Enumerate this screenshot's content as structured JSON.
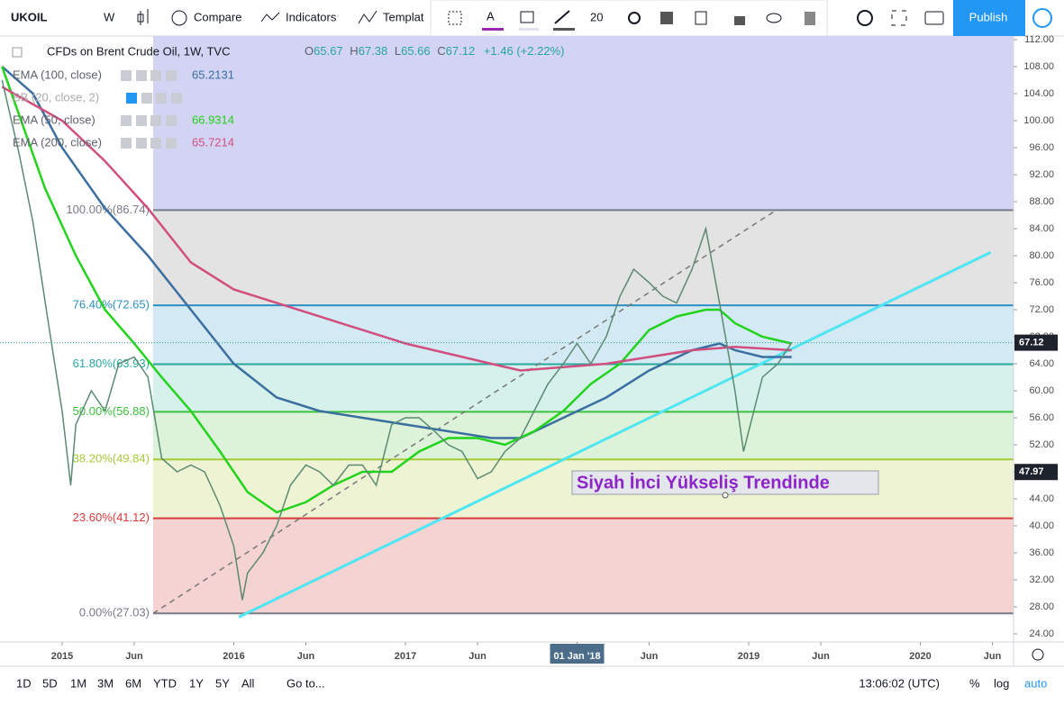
{
  "toolbar": {
    "symbol": "UKOIL",
    "interval": "W",
    "buttons": [
      "Compare",
      "Indicators",
      "Templat"
    ],
    "font_size": "20",
    "publish": "Publish"
  },
  "legend": {
    "title": "CFDs on Brent Crude Oil, 1W, TVC",
    "ohlc": [
      {
        "label": "O",
        "value": 65.67
      },
      {
        "label": "H",
        "value": 67.38
      },
      {
        "label": "L",
        "value": 65.66
      },
      {
        "label": "C",
        "value": 67.12
      }
    ],
    "change": "+1.46 (+2.22%)"
  },
  "chart_data": {
    "type": "line",
    "xlim": [
      2014.638,
      2020.543
    ],
    "ylim": [
      22.8,
      112.53
    ],
    "xticks": [
      {
        "value": 2015,
        "label": "2015"
      },
      {
        "value": 2015.42,
        "label": "Jun"
      },
      {
        "value": 2016,
        "label": "2016"
      },
      {
        "value": 2016.42,
        "label": "Jun"
      },
      {
        "value": 2017,
        "label": "2017"
      },
      {
        "value": 2017.42,
        "label": "Jun"
      },
      {
        "value": 2018,
        "label": "01 Jan '18"
      },
      {
        "value": 2018.42,
        "label": "Jun"
      },
      {
        "value": 2019,
        "label": "2019"
      },
      {
        "value": 2019.42,
        "label": "Jun"
      },
      {
        "value": 2020,
        "label": "2020"
      },
      {
        "value": 2020.42,
        "label": "Jun"
      }
    ],
    "yticks": [
      {
        "value": 24,
        "label": "24.00"
      },
      {
        "value": 28,
        "label": "28.00"
      },
      {
        "value": 32,
        "label": "32.00"
      },
      {
        "value": 36,
        "label": "36.00"
      },
      {
        "value": 40,
        "label": "40.00"
      },
      {
        "value": 44,
        "label": "44.00"
      },
      {
        "value": 48,
        "label": "48.00"
      },
      {
        "value": 52,
        "label": "52.00"
      },
      {
        "value": 56,
        "label": "56.00"
      },
      {
        "value": 60,
        "label": "60.00"
      },
      {
        "value": 64,
        "label": "64.00"
      },
      {
        "value": 68,
        "label": "68.00"
      },
      {
        "value": 72,
        "label": "72.00"
      },
      {
        "value": 76,
        "label": "76.00"
      },
      {
        "value": 80,
        "label": "80.00"
      },
      {
        "value": 84,
        "label": "84.00"
      },
      {
        "value": 88,
        "label": "88.00"
      },
      {
        "value": 92,
        "label": "92.00"
      },
      {
        "value": 96,
        "label": "96.00"
      },
      {
        "value": 100,
        "label": "100.00"
      },
      {
        "value": 104,
        "label": "104.00"
      },
      {
        "value": 108,
        "label": "108.00"
      },
      {
        "value": 112,
        "label": "112.00"
      }
    ],
    "color": "#5b8a72",
    "x": [
      2014.65,
      2014.75,
      2014.83,
      2014.92,
      2015.0,
      2015.05,
      2015.08,
      2015.17,
      2015.25,
      2015.33,
      2015.42,
      2015.5,
      2015.58,
      2015.67,
      2015.75,
      2015.83,
      2015.92,
      2016.0,
      2016.05,
      2016.08,
      2016.17,
      2016.25,
      2016.33,
      2016.42,
      2016.5,
      2016.58,
      2016.67,
      2016.75,
      2016.83,
      2016.92,
      2017.0,
      2017.08,
      2017.17,
      2017.25,
      2017.33,
      2017.42,
      2017.5,
      2017.58,
      2017.67,
      2017.75,
      2017.83,
      2017.92,
      2018.0,
      2018.08,
      2018.17,
      2018.25,
      2018.33,
      2018.42,
      2018.5,
      2018.58,
      2018.67,
      2018.75,
      2018.83,
      2018.92,
      2018.97,
      2019.0,
      2019.08,
      2019.17,
      2019.25
    ],
    "values": [
      106,
      95,
      85,
      70,
      57,
      46,
      55,
      60,
      57,
      64,
      65,
      62,
      50,
      48,
      49,
      48,
      43,
      37,
      29,
      33,
      36,
      40,
      46,
      49,
      48,
      46,
      49,
      49,
      46,
      55,
      56,
      56,
      54,
      52,
      51,
      47,
      48,
      51,
      53,
      57,
      61,
      64,
      67,
      64,
      68,
      74,
      78,
      76,
      74,
      73,
      78,
      84,
      73,
      60,
      51,
      54,
      62,
      64,
      67.12
    ],
    "indicators": [
      {
        "name": "EMA (100, close)",
        "last": 65.2131,
        "color": "#3a6fa0",
        "x": [
          2014.65,
          2014.83,
          2015.0,
          2015.25,
          2015.5,
          2015.75,
          2016.0,
          2016.25,
          2016.5,
          2016.75,
          2017.0,
          2017.25,
          2017.5,
          2017.67,
          2017.92,
          2018.17,
          2018.42,
          2018.67,
          2018.83,
          2018.92,
          2019.08,
          2019.25
        ],
        "values": [
          108,
          104,
          96,
          87,
          80,
          72,
          64,
          59,
          57,
          56,
          55,
          54,
          53,
          53,
          56,
          59,
          63,
          66,
          67,
          66,
          65,
          65
        ]
      },
      {
        "name": "BB (20, close, 2)",
        "last": null,
        "color": "#9ea3ad"
      },
      {
        "name": "EMA (50, close)",
        "last": 66.9314,
        "color": "#22d31c",
        "x": [
          2014.65,
          2014.9,
          2015.08,
          2015.25,
          2015.42,
          2015.58,
          2015.75,
          2015.92,
          2016.08,
          2016.25,
          2016.42,
          2016.58,
          2016.75,
          2016.92,
          2017.08,
          2017.25,
          2017.42,
          2017.58,
          2017.75,
          2017.92,
          2018.08,
          2018.25,
          2018.42,
          2018.58,
          2018.75,
          2018.83,
          2018.92,
          2019.08,
          2019.25
        ],
        "values": [
          108,
          90,
          80,
          72,
          67,
          62,
          57,
          51,
          45,
          42,
          43.5,
          46,
          48,
          48,
          51,
          53,
          53,
          52,
          54,
          57,
          61,
          64,
          69,
          71,
          72,
          72,
          70,
          68,
          67
        ]
      },
      {
        "name": "EMA (200, close)",
        "last": 65.7214,
        "color": "#d14f7e",
        "x": [
          2014.65,
          2015.0,
          2015.25,
          2015.5,
          2015.75,
          2016.0,
          2016.25,
          2016.5,
          2016.75,
          2017.0,
          2017.25,
          2017.5,
          2017.67,
          2017.92,
          2018.17,
          2018.42,
          2018.67,
          2018.92,
          2019.25
        ],
        "values": [
          105,
          100,
          94,
          87,
          79,
          75,
          73,
          71,
          69,
          67,
          65.5,
          64,
          63,
          63.5,
          64,
          65,
          66,
          66.5,
          66
        ]
      }
    ],
    "top_fill": "#d3d3f4",
    "fib_levels": [
      {
        "label": "100.00%(86.74)",
        "value": 86.74,
        "color": "#787b86",
        "fill": "#e3e3e3"
      },
      {
        "label": "76.40%(72.65)",
        "value": 72.65,
        "color": "#2e8fc2",
        "fill": "#d3e9f3"
      },
      {
        "label": "61.80%(63.93)",
        "value": 63.93,
        "color": "#27a89b",
        "fill": "#d6f0ec"
      },
      {
        "label": "50.00%(56.88)",
        "value": 56.88,
        "color": "#3cc23c",
        "fill": "#dcf2d9"
      },
      {
        "label": "38.20%(49.84)",
        "value": 49.84,
        "color": "#a5c93a",
        "fill": "#eef3d4"
      },
      {
        "label": "23.60%(41.12)",
        "value": 41.12,
        "color": "#d93a3a",
        "fill": "#f5d3d3"
      },
      {
        "label": "0.00%(27.03)",
        "value": 27.03,
        "color": "#787b86",
        "fill": null
      }
    ],
    "trend_lines": [
      {
        "x": [
          2016.03,
          2020.41
        ],
        "values": [
          26.5,
          80.5
        ],
        "color": "#4ee6f2",
        "dashed": false
      },
      {
        "x": [
          2015.53,
          2019.16
        ],
        "values": [
          27.03,
          86.74
        ],
        "color": "#777777",
        "dashed": true
      }
    ],
    "price_tags": [
      {
        "value": 67.12,
        "color": "#1e222d"
      },
      {
        "value": 47.97,
        "color": "#1e222d"
      }
    ],
    "annotation": "Siyah İnci Yükseliş Trendinde"
  },
  "bottom_bar": {
    "ranges": [
      "1D",
      "5D",
      "1M",
      "3M",
      "6M",
      "YTD",
      "1Y",
      "5Y",
      "All"
    ],
    "goto": "Go to...",
    "time": "13:06:02 (UTC)",
    "scale": [
      "%",
      "log",
      "auto"
    ]
  }
}
